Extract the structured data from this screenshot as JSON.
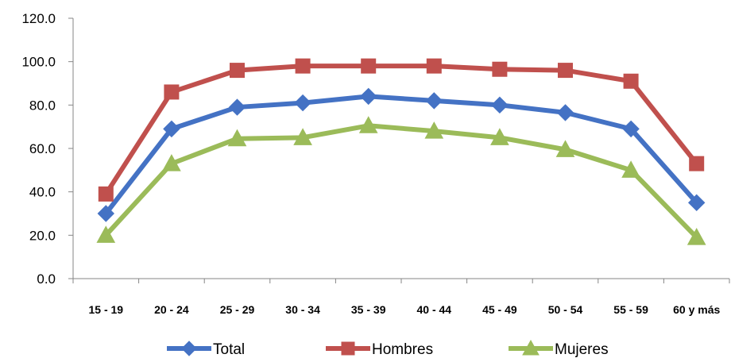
{
  "chart_data": {
    "type": "line",
    "title": "",
    "xlabel": "",
    "ylabel": "",
    "categories": [
      "15  - 19",
      "20  - 24",
      "25  - 29",
      "30  - 34",
      "35  - 39",
      "40  - 44",
      "45  - 49",
      "50  - 54",
      "55  - 59",
      "60 y más"
    ],
    "ylim": [
      0,
      120
    ],
    "ytick_values": [
      0,
      20,
      40,
      60,
      80,
      100,
      120
    ],
    "ytick_labels": [
      "0.0",
      "20.0",
      "40.0",
      "60.0",
      "80.0",
      "100.0",
      "120.0"
    ],
    "grid": false,
    "legend_position": "bottom",
    "series": [
      {
        "name": "Total",
        "color": "#4472C4",
        "marker": "diamond",
        "values": [
          30,
          69,
          79,
          81,
          84,
          82,
          80,
          76.5,
          69,
          35
        ]
      },
      {
        "name": "Hombres",
        "color": "#C0504D",
        "marker": "square",
        "values": [
          39,
          86,
          96,
          98,
          98,
          98,
          96.5,
          96,
          91,
          53
        ]
      },
      {
        "name": "Mujeres",
        "color": "#9BBB59",
        "marker": "triangle",
        "values": [
          20,
          53,
          64.5,
          65,
          70.5,
          68,
          65,
          59.5,
          50,
          19
        ]
      }
    ]
  }
}
